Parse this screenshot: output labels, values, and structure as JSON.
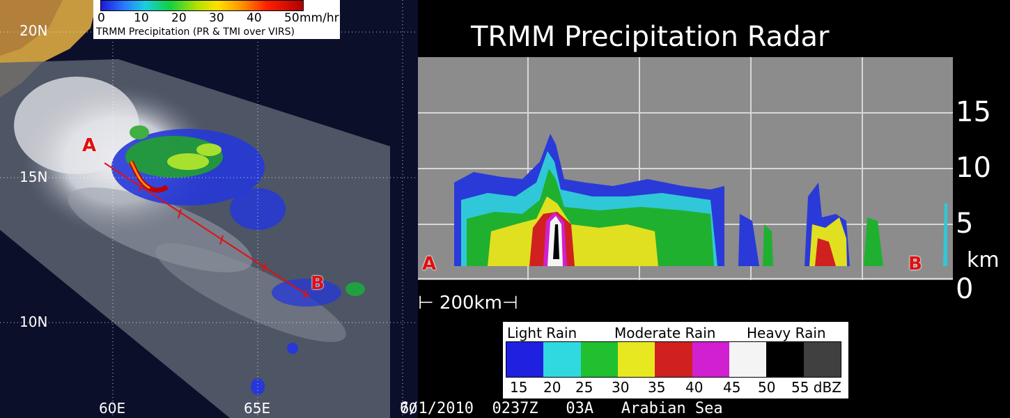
{
  "map": {
    "lat_labels": [
      "20N",
      "15N",
      "10N"
    ],
    "lon_labels": [
      "60E",
      "65E",
      "70"
    ],
    "point_a": "A",
    "point_b": "B"
  },
  "precip_legend": {
    "ticks": [
      "0",
      "10",
      "20",
      "30",
      "40",
      "50"
    ],
    "unit": "mm/hr",
    "caption": "TRMM Precipitation  (PR & TMI  over VIRS)"
  },
  "radar": {
    "title": "TRMM Precipitation Radar",
    "height_ticks": [
      "15",
      "10",
      "5",
      "0"
    ],
    "height_unit": "km",
    "label_a": "A",
    "label_b": "B",
    "scale_bar": "200km"
  },
  "dbz_legend": {
    "categories": [
      "Light Rain",
      "Moderate Rain",
      "Heavy Rain"
    ],
    "ticks": [
      "15",
      "20",
      "25",
      "30",
      "35",
      "40",
      "45",
      "50",
      "55 dBZ"
    ],
    "colors": [
      "#2020e0",
      "#30d8e0",
      "#20c030",
      "#e8e820",
      "#d02020",
      "#d020d0",
      "#f4f4f4",
      "#000000",
      "#404040"
    ]
  },
  "footer": {
    "text": "6/1/2010  0237Z   03A   Arabian Sea"
  }
}
